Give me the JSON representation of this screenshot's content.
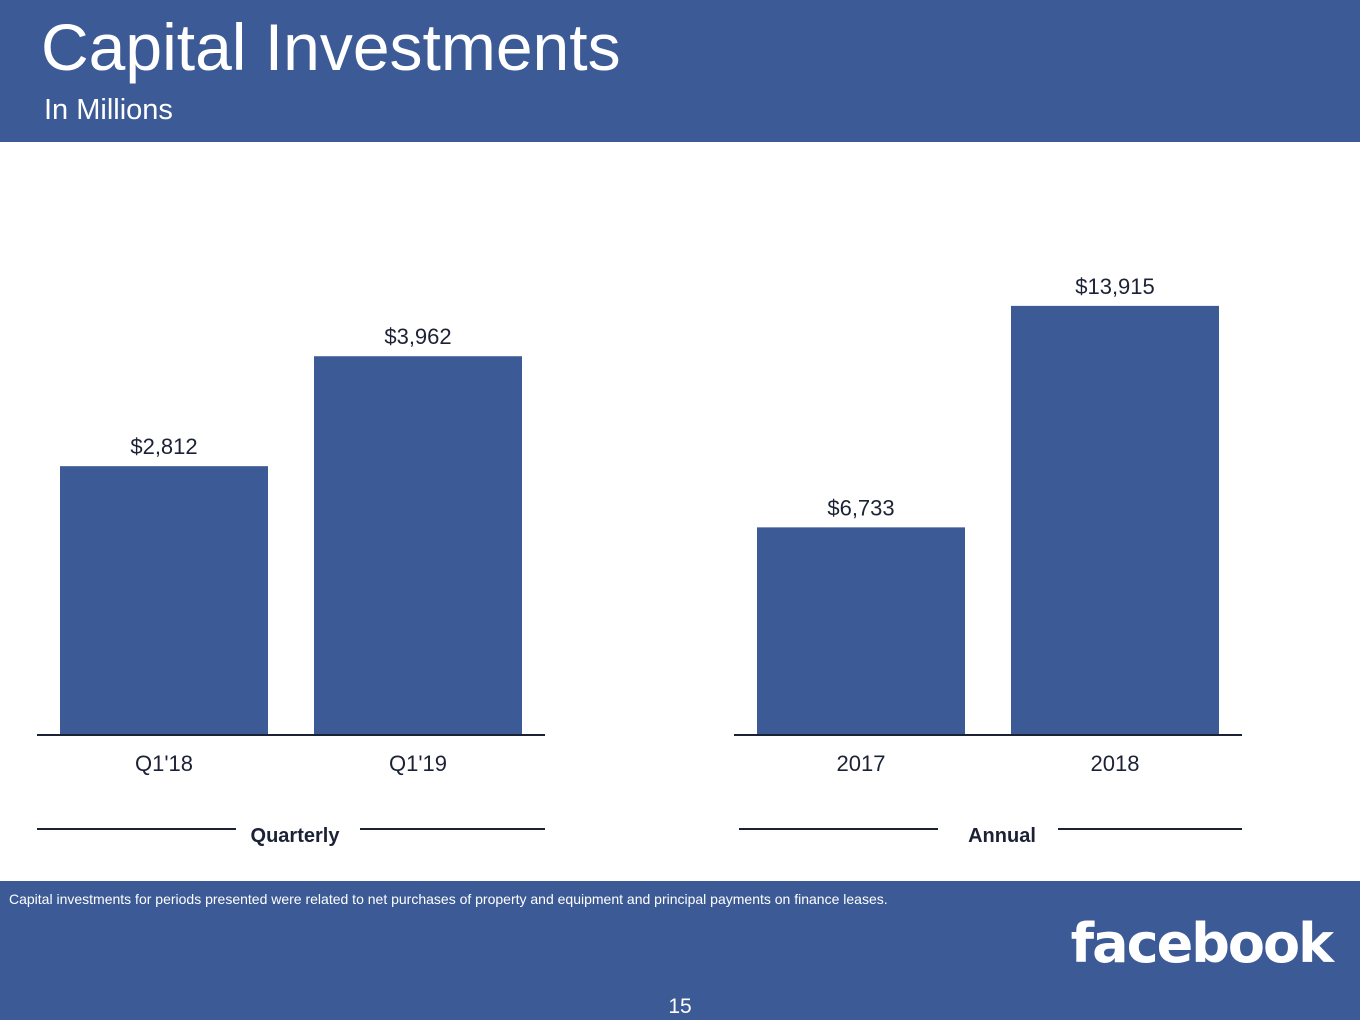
{
  "slide": {
    "title": "Capital Investments",
    "subtitle": "In Millions",
    "footnote": "Capital investments for periods presented were related to net purchases of property and equipment and principal payments on finance leases.",
    "logo": "facebook",
    "page_number": "15"
  },
  "colors": {
    "brand": "#3c5a96",
    "bar": "#3c5a96",
    "text": "#1c2235"
  },
  "chart_data": [
    {
      "type": "bar",
      "group_label": "Quarterly",
      "categories": [
        "Q1'18",
        "Q1'19"
      ],
      "values": [
        2812,
        3962
      ],
      "value_labels": [
        "$2,812",
        "$3,962"
      ],
      "ylim": [
        0,
        5000
      ],
      "grid": false
    },
    {
      "type": "bar",
      "group_label": "Annual",
      "categories": [
        "2017",
        "2018"
      ],
      "values": [
        6733,
        13915
      ],
      "value_labels": [
        "$6,733",
        "$13,915"
      ],
      "ylim": [
        0,
        15500
      ],
      "grid": false
    }
  ]
}
